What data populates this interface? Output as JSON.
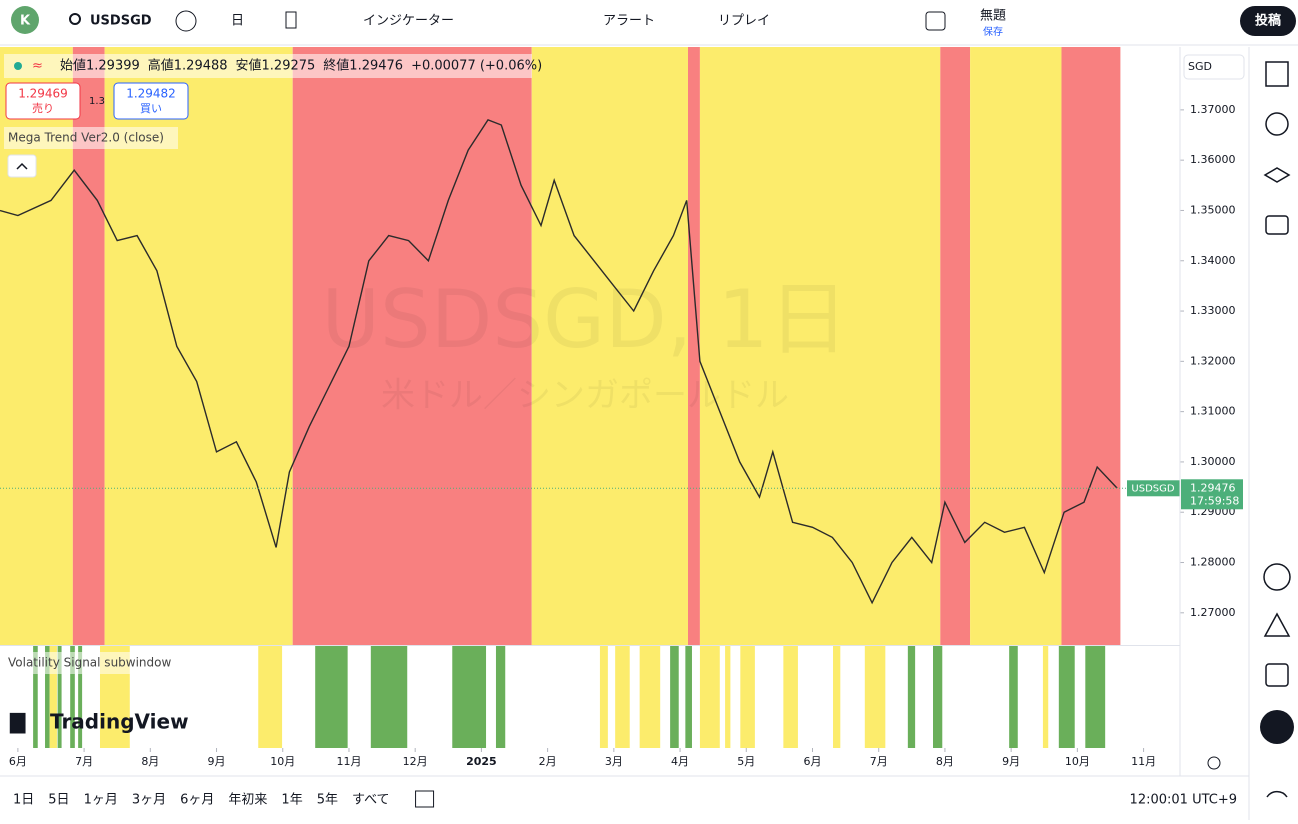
{
  "toolbar": {
    "avatar": "K",
    "symbol": "USDSGD",
    "interval": "日",
    "indicators": "インジケーター",
    "alert": "アラート",
    "replay": "リプレイ",
    "layout_name": "無題",
    "save": "保存",
    "publish": "投稿"
  },
  "legend": {
    "items": [
      "始値1.29399",
      "高値1.29488",
      "安値1.29275",
      "終値1.29476",
      "+0.00077 (+0.06%)"
    ],
    "sell_price": "1.29469",
    "sell": "売り",
    "spread": "1.3",
    "buy_price": "1.29482",
    "buy": "買い",
    "indicator": "Mega Trend Ver2.0 (close)",
    "subwindow": "Volatility Signal subwindow",
    "logo": "TradingView",
    "watermark": "USDSGD, 1日",
    "watermark_sub": "米ドル／シンガポールドル",
    "currency": "SGD"
  },
  "chart_data": {
    "type": "line",
    "color": "#2b2b2b",
    "x": [
      -0.27,
      0,
      0.5,
      0.85,
      1.2,
      1.5,
      1.8,
      2.1,
      2.4,
      2.7,
      3.0,
      3.3,
      3.6,
      3.9,
      4.1,
      4.4,
      4.7,
      5.0,
      5.3,
      5.6,
      5.9,
      6.2,
      6.5,
      6.8,
      7.1,
      7.3,
      7.6,
      7.9,
      8.1,
      8.4,
      8.7,
      9.0,
      9.3,
      9.6,
      9.9,
      10.1,
      10.3,
      10.6,
      10.9,
      11.2,
      11.4,
      11.7,
      12.0,
      12.3,
      12.6,
      12.9,
      13.2,
      13.5,
      13.8,
      14.0,
      14.3,
      14.6,
      14.9,
      15.2,
      15.5,
      15.8,
      16.1,
      16.3,
      16.6
    ],
    "values": [
      1.35,
      1.349,
      1.352,
      1.358,
      1.352,
      1.344,
      1.345,
      1.338,
      1.323,
      1.316,
      1.302,
      1.304,
      1.296,
      1.283,
      1.298,
      1.307,
      1.315,
      1.323,
      1.34,
      1.345,
      1.344,
      1.34,
      1.352,
      1.362,
      1.368,
      1.367,
      1.355,
      1.347,
      1.356,
      1.345,
      1.34,
      1.335,
      1.33,
      1.338,
      1.345,
      1.352,
      1.32,
      1.31,
      1.3,
      1.293,
      1.302,
      1.288,
      1.287,
      1.285,
      1.28,
      1.272,
      1.28,
      1.285,
      1.28,
      1.292,
      1.284,
      1.288,
      1.286,
      1.287,
      1.278,
      1.29,
      1.292,
      1.299,
      1.2948
    ],
    "xlim": [
      -0.27,
      17.55
    ],
    "ylim": [
      1.2636,
      1.3825
    ],
    "yticks": [
      {
        "value": 1.27,
        "label": "1.27000"
      },
      {
        "value": 1.28,
        "label": "1.28000"
      },
      {
        "value": 1.29,
        "label": "1.29000"
      },
      {
        "value": 1.3,
        "label": "1.30000"
      },
      {
        "value": 1.31,
        "label": "1.31000"
      },
      {
        "value": 1.32,
        "label": "1.32000"
      },
      {
        "value": 1.33,
        "label": "1.33000"
      },
      {
        "value": 1.34,
        "label": "1.34000"
      },
      {
        "value": 1.35,
        "label": "1.35000"
      },
      {
        "value": 1.36,
        "label": "1.36000"
      },
      {
        "value": 1.37,
        "label": "1.37000"
      }
    ],
    "xticks": [
      {
        "value": 0,
        "label": "6月"
      },
      {
        "value": 1,
        "label": "7月"
      },
      {
        "value": 2,
        "label": "8月"
      },
      {
        "value": 3,
        "label": "9月"
      },
      {
        "value": 4,
        "label": "10月"
      },
      {
        "value": 5,
        "label": "11月"
      },
      {
        "value": 6,
        "label": "12月"
      },
      {
        "value": 7,
        "label": "2025"
      },
      {
        "value": 8,
        "label": "2月"
      },
      {
        "value": 9,
        "label": "3月"
      },
      {
        "value": 10,
        "label": "4月"
      },
      {
        "value": 11,
        "label": "5月"
      },
      {
        "value": 12,
        "label": "6月"
      },
      {
        "value": 13,
        "label": "7月"
      },
      {
        "value": 14,
        "label": "8月"
      },
      {
        "value": 15,
        "label": "9月"
      },
      {
        "value": 16,
        "label": "10月"
      },
      {
        "value": 17,
        "label": "11月"
      }
    ],
    "last_price": {
      "value": 1.29476,
      "label": "1.29476",
      "symbol": "USDSGD",
      "countdown": "17:59:58"
    },
    "bands": [
      {
        "start": -0.27,
        "end": 0.83,
        "color": "#fcec6c"
      },
      {
        "start": 0.83,
        "end": 1.31,
        "color": "#f88080"
      },
      {
        "start": 1.31,
        "end": 4.15,
        "color": "#fcec6c"
      },
      {
        "start": 4.15,
        "end": 7.76,
        "color": "#f88080"
      },
      {
        "start": 7.76,
        "end": 10.12,
        "color": "#fcec6c"
      },
      {
        "start": 10.12,
        "end": 10.3,
        "color": "#f88080"
      },
      {
        "start": 10.3,
        "end": 13.93,
        "color": "#fcec6c"
      },
      {
        "start": 13.93,
        "end": 14.38,
        "color": "#f88080"
      },
      {
        "start": 14.38,
        "end": 15.76,
        "color": "#fcec6c"
      },
      {
        "start": 15.76,
        "end": 16.65,
        "color": "#f88080"
      }
    ],
    "signals": [
      {
        "start": 0.23,
        "end": 0.3,
        "color": "#6aaf5a"
      },
      {
        "start": 0.41,
        "end": 0.48,
        "color": "#6aaf5a"
      },
      {
        "start": 0.48,
        "end": 0.59,
        "color": "#fcec6c"
      },
      {
        "start": 0.6,
        "end": 0.66,
        "color": "#6aaf5a"
      },
      {
        "start": 0.79,
        "end": 0.86,
        "color": "#6aaf5a"
      },
      {
        "start": 0.91,
        "end": 0.97,
        "color": "#6aaf5a"
      },
      {
        "start": 1.24,
        "end": 1.69,
        "color": "#fcec6c"
      },
      {
        "start": 3.63,
        "end": 3.99,
        "color": "#fcec6c"
      },
      {
        "start": 4.49,
        "end": 4.98,
        "color": "#6aaf5a"
      },
      {
        "start": 5.33,
        "end": 5.88,
        "color": "#6aaf5a"
      },
      {
        "start": 6.56,
        "end": 7.07,
        "color": "#6aaf5a"
      },
      {
        "start": 7.22,
        "end": 7.36,
        "color": "#6aaf5a"
      },
      {
        "start": 8.79,
        "end": 8.91,
        "color": "#fcec6c"
      },
      {
        "start": 9.02,
        "end": 9.24,
        "color": "#fcec6c"
      },
      {
        "start": 9.39,
        "end": 9.7,
        "color": "#fcec6c"
      },
      {
        "start": 9.85,
        "end": 9.98,
        "color": "#6aaf5a"
      },
      {
        "start": 10.08,
        "end": 10.18,
        "color": "#6aaf5a"
      },
      {
        "start": 10.3,
        "end": 10.6,
        "color": "#fcec6c"
      },
      {
        "start": 10.68,
        "end": 10.76,
        "color": "#fcec6c"
      },
      {
        "start": 10.91,
        "end": 11.13,
        "color": "#fcec6c"
      },
      {
        "start": 11.56,
        "end": 11.78,
        "color": "#fcec6c"
      },
      {
        "start": 12.31,
        "end": 12.42,
        "color": "#fcec6c"
      },
      {
        "start": 12.79,
        "end": 13.1,
        "color": "#fcec6c"
      },
      {
        "start": 13.44,
        "end": 13.55,
        "color": "#6aaf5a"
      },
      {
        "start": 13.82,
        "end": 13.96,
        "color": "#6aaf5a"
      },
      {
        "start": 14.97,
        "end": 15.1,
        "color": "#6aaf5a"
      },
      {
        "start": 15.48,
        "end": 15.56,
        "color": "#fcec6c"
      },
      {
        "start": 15.72,
        "end": 15.96,
        "color": "#6aaf5a"
      },
      {
        "start": 16.12,
        "end": 16.42,
        "color": "#6aaf5a"
      }
    ]
  },
  "bottom_bar": {
    "ranges": [
      "1日",
      "5日",
      "1ヶ月",
      "3ヶ月",
      "6ヶ月",
      "年初来",
      "1年",
      "5年",
      "すべて"
    ],
    "clock": "12:00:01 UTC+9"
  }
}
